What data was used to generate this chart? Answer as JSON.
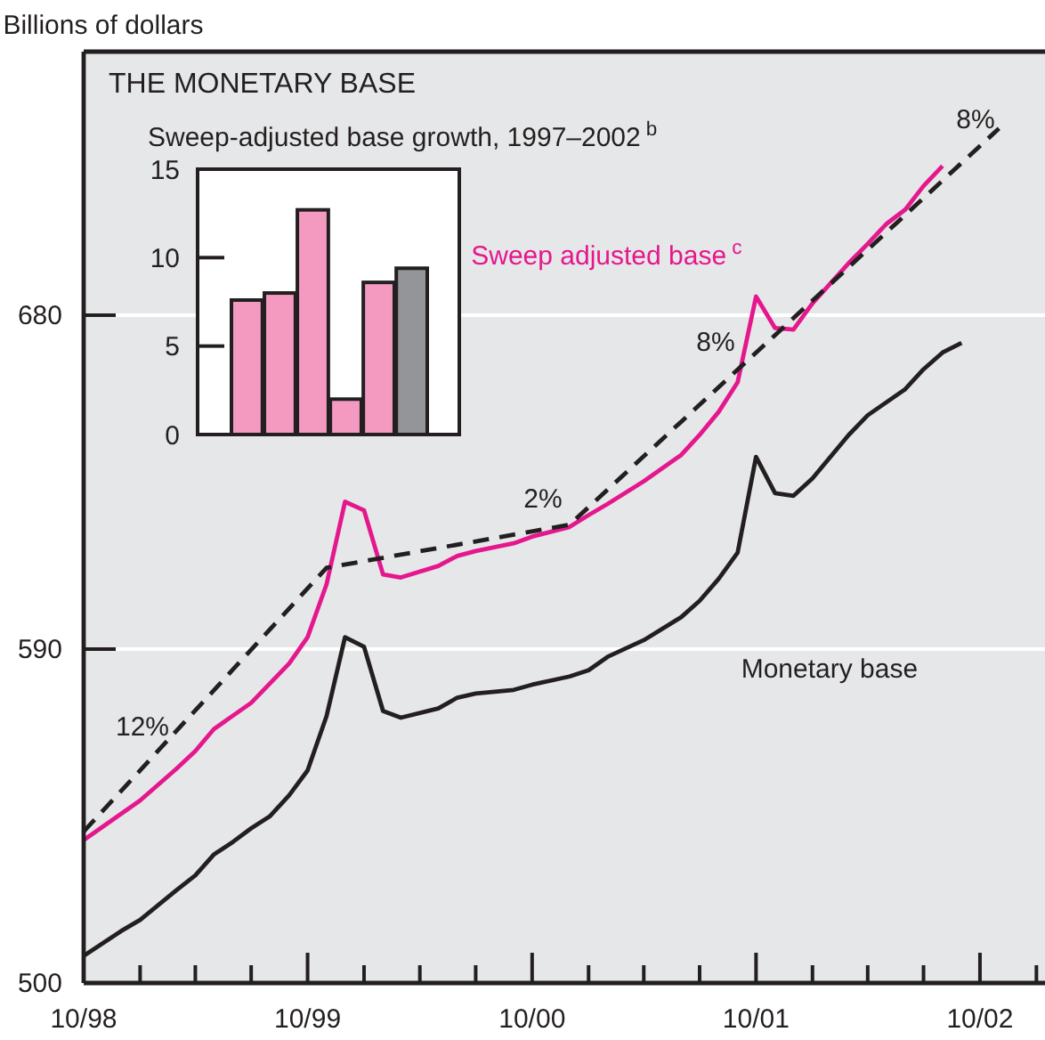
{
  "chart_data": [
    {
      "type": "line",
      "title": "THE MONETARY BASE",
      "ylabel": "Billions of dollars",
      "xlim": [
        "1998-10",
        "2003-01-15"
      ],
      "ylim": [
        500,
        751
      ],
      "yticks": [
        500,
        590,
        680
      ],
      "xticks": [
        {
          "value": "1998-10",
          "label": "10/98"
        },
        {
          "value": "1999-01",
          "label": null
        },
        {
          "value": "1999-04",
          "label": null
        },
        {
          "value": "1999-07",
          "label": null
        },
        {
          "value": "1999-10",
          "label": "10/99"
        },
        {
          "value": "2000-01",
          "label": null
        },
        {
          "value": "2000-04",
          "label": null
        },
        {
          "value": "2000-07",
          "label": null
        },
        {
          "value": "2000-10",
          "label": "10/00"
        },
        {
          "value": "2001-01",
          "label": null
        },
        {
          "value": "2001-04",
          "label": null
        },
        {
          "value": "2001-07",
          "label": null
        },
        {
          "value": "2001-10",
          "label": "10/01"
        },
        {
          "value": "2002-01",
          "label": null
        },
        {
          "value": "2002-04",
          "label": null
        },
        {
          "value": "2002-07",
          "label": null
        },
        {
          "value": "2002-10",
          "label": "10/02"
        },
        {
          "value": "2003-01",
          "label": null
        }
      ],
      "grid": "y",
      "series": [
        {
          "name": "Sweep adjusted base$^{c}$",
          "color": "#e5178d",
          "x": [
            "1998-10",
            "1998-12",
            "1999-01",
            "1999-03",
            "1999-04",
            "1999-05",
            "1999-07",
            "1999-09",
            "1999-10",
            "1999-11",
            "1999-12",
            "2000-01",
            "2000-02",
            "2000-03",
            "2000-05",
            "2000-06",
            "2000-07",
            "2000-09",
            "2000-10",
            "2000-12",
            "2001-01",
            "2001-02",
            "2001-04",
            "2001-06",
            "2001-07",
            "2001-08",
            "2001-09",
            "2001-10",
            "2001-11",
            "2001-12",
            "2002-01",
            "2002-03",
            "2002-04",
            "2002-05",
            "2002-06",
            "2002-07",
            "2002-08"
          ],
          "values": [
            538.5,
            545.6,
            549.2,
            557.7,
            562.5,
            568.4,
            575.5,
            586.1,
            593.2,
            607.5,
            629.7,
            627.4,
            610.1,
            609.3,
            612.4,
            615.1,
            616.4,
            618.5,
            620.3,
            622.9,
            626.1,
            629.1,
            635.2,
            642.3,
            647.7,
            653.9,
            661.9,
            685,
            676.5,
            676.1,
            683.2,
            694,
            699.2,
            704.5,
            708.4,
            714.8,
            720.2
          ]
        },
        {
          "name": "Monetary base",
          "color": "#231f20",
          "x": [
            "1998-10",
            "1998-12",
            "1999-01",
            "1999-03",
            "1999-04",
            "1999-05",
            "1999-06",
            "1999-07",
            "1999-08",
            "1999-09",
            "1999-10",
            "1999-11",
            "1999-12",
            "2000-01",
            "2000-02",
            "2000-03",
            "2000-05",
            "2000-06",
            "2000-07",
            "2000-09",
            "2000-10",
            "2000-12",
            "2001-01",
            "2001-02",
            "2001-04",
            "2001-06",
            "2001-07",
            "2001-08",
            "2001-09",
            "2001-10",
            "2001-11",
            "2001-12",
            "2002-01",
            "2002-03",
            "2002-04",
            "2002-06",
            "2002-07",
            "2002-08",
            "2002-09"
          ],
          "values": [
            507.3,
            514,
            517,
            525,
            529,
            534.6,
            538,
            541.7,
            545,
            550.6,
            557.3,
            572,
            593.2,
            590.6,
            573.3,
            571.5,
            574,
            576.9,
            578,
            579,
            580.4,
            582.6,
            584.3,
            587.9,
            592.4,
            598.6,
            603,
            608.9,
            616,
            641.8,
            632,
            631.3,
            636,
            647.7,
            653,
            660,
            665.4,
            669.9,
            672.5
          ]
        },
        {
          "type": "line",
          "line_style": "dashed",
          "color": "#231f20",
          "x": [
            "1998-10",
            "1999-11",
            "2000-12",
            "2002-11"
          ],
          "values": [
            540.8,
            611.9,
            623.5,
            730.3
          ]
        }
      ],
      "annotations": [
        "12%",
        "2%",
        "8%",
        "8%"
      ]
    },
    {
      "type": "bar",
      "title": "Sweep-adjusted base growth, 1997–2002$^{b}$",
      "categories": [
        null,
        null,
        null,
        null,
        null,
        null
      ],
      "values": [
        7.6,
        8.0,
        12.7,
        2.0,
        8.6,
        9.4
      ],
      "colors": [
        "#f49ac1",
        "#f49ac1",
        "#f49ac1",
        "#f49ac1",
        "#f49ac1",
        "#939598"
      ],
      "ylim": [
        0,
        15
      ],
      "yticks": [
        0,
        5,
        10,
        15
      ],
      "tick_labels": "y"
    }
  ]
}
